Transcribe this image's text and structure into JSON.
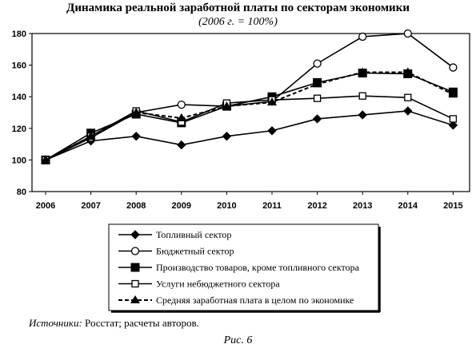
{
  "chart_data": {
    "type": "line",
    "title": "Динамика реальной заработной платы по секторам экономики",
    "subtitle": "(2006 г. = 100%)",
    "xlabel": "",
    "ylabel": "",
    "x": [
      "2006",
      "2007",
      "2008",
      "2009",
      "2010",
      "2011",
      "2012",
      "2013",
      "2014",
      "2015"
    ],
    "ylim": [
      80,
      180
    ],
    "yticks": [
      80,
      100,
      120,
      140,
      160,
      180
    ],
    "grid": false,
    "legend_position": "bottom",
    "series": [
      {
        "name": "Топливный сектор",
        "marker": "diamond",
        "line": "solid",
        "values": [
          100,
          112,
          115,
          109.5,
          115,
          118.5,
          126,
          128.5,
          131,
          122
        ]
      },
      {
        "name": "Бюджетный сектор",
        "marker": "circle-open",
        "line": "solid",
        "values": [
          100,
          114,
          130,
          135,
          134,
          137,
          161,
          178,
          180,
          158.5
        ]
      },
      {
        "name": "Производство товаров, кроме топливного сектора",
        "marker": "square",
        "line": "solid",
        "values": [
          100,
          117,
          129,
          123.5,
          134,
          140,
          149,
          155,
          154.5,
          143
        ]
      },
      {
        "name": "Услуги небюджетного сектора",
        "marker": "square-open",
        "line": "solid",
        "values": [
          100,
          115,
          131,
          124,
          136,
          138,
          139,
          140.5,
          139.5,
          126
        ]
      },
      {
        "name": "Средняя заработная плата в целом по экономике",
        "marker": "triangle",
        "line": "dashed",
        "values": [
          100,
          115,
          130,
          126.5,
          134,
          136.5,
          148,
          155.5,
          155.5,
          141.5
        ]
      }
    ]
  },
  "source": {
    "label": "Источники:",
    "text": " Росстат; расчеты авторов."
  },
  "figure_caption": "Рис. 6"
}
